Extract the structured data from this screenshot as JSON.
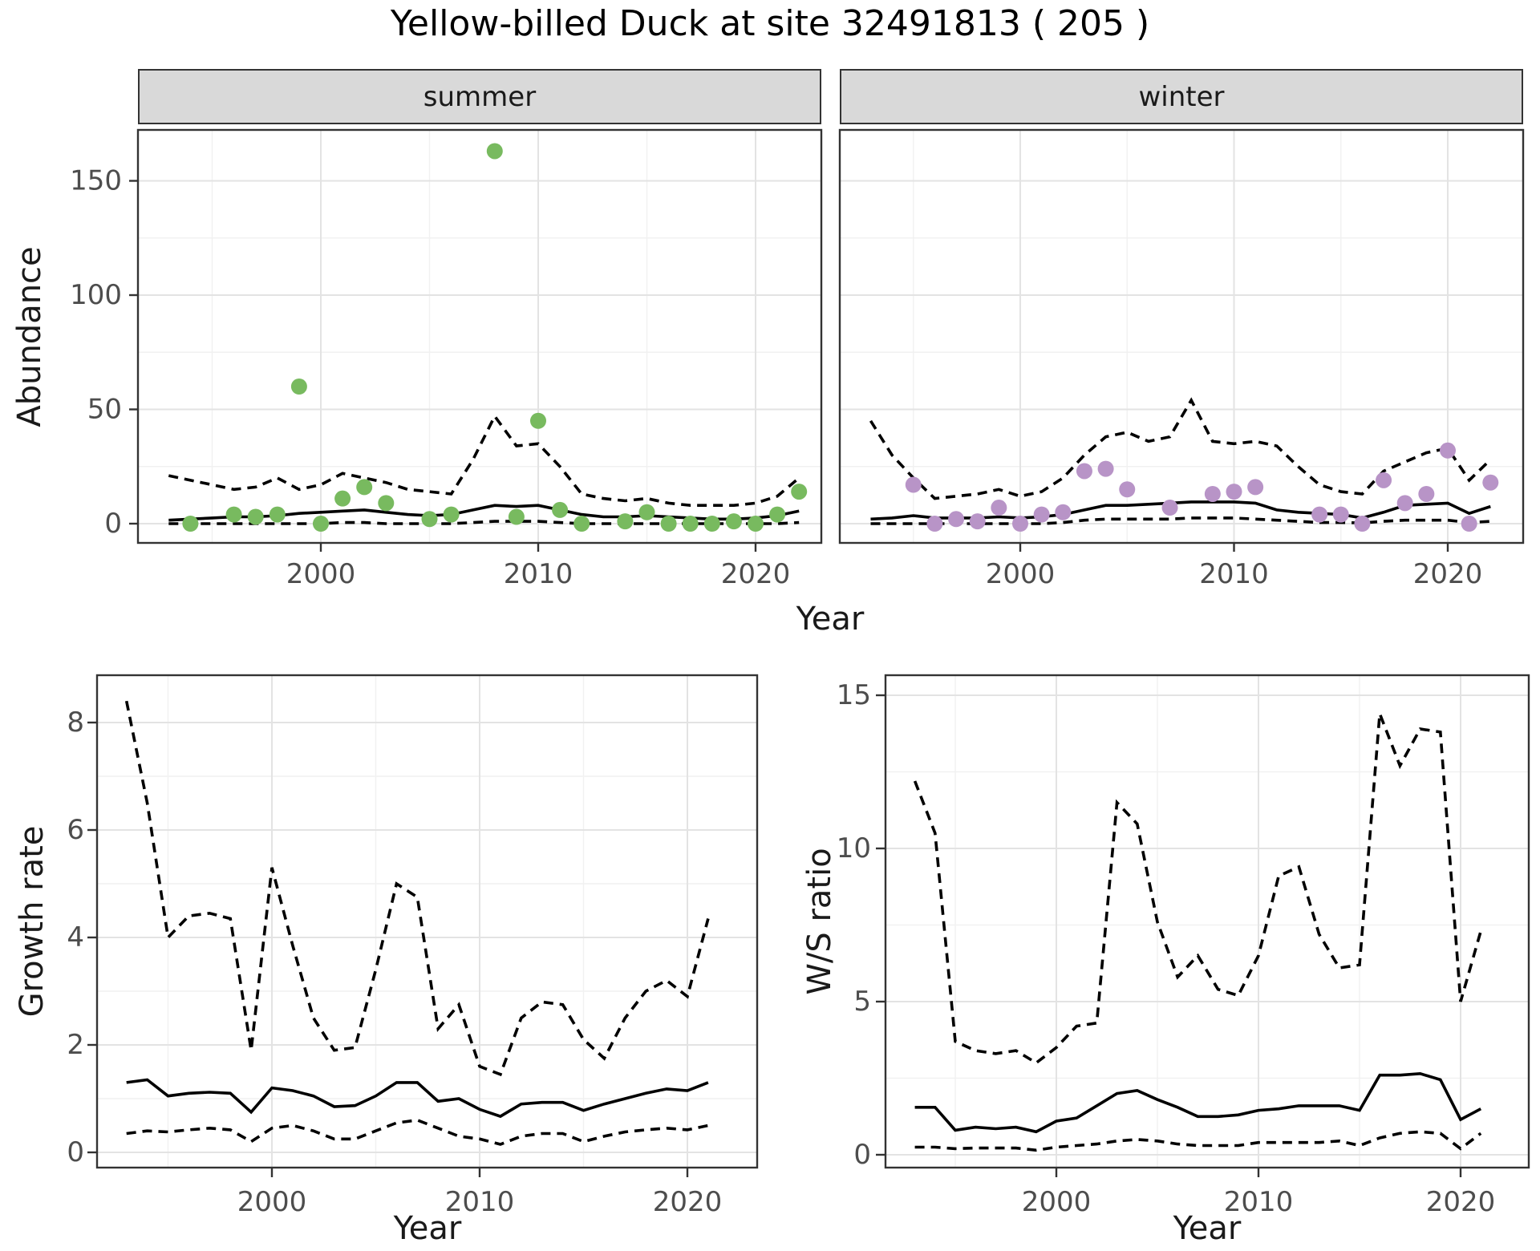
{
  "title": "Yellow-billed Duck at site 32491813 ( 205 )",
  "facets": [
    {
      "label": "summer"
    },
    {
      "label": "winter"
    }
  ],
  "axes": {
    "abundance": "Abundance",
    "year": "Year",
    "growth": "Growth rate",
    "ws": "W/S ratio"
  },
  "colors": {
    "summer_point": "#78ba5f",
    "winter_point": "#b894c7",
    "line": "#000000",
    "strip_bg": "#d9d9d9",
    "grid_major": "#e3e3e3",
    "grid_minor": "#f1f1f1",
    "panel_border": "#333333",
    "tick_text": "#4d4d4d",
    "background": "#ffffff"
  },
  "chart_data": [
    {
      "id": "abundance_summer",
      "type": "scatter",
      "facet_label": "summer",
      "xlabel": "Year",
      "ylabel": "Abundance",
      "xlim": [
        1991.6,
        2023
      ],
      "ylim": [
        -8,
        172
      ],
      "x_ticks": [
        2000,
        2010,
        2020
      ],
      "x_minor": [
        1995,
        2005,
        2015
      ],
      "y_ticks": [
        0,
        50,
        100,
        150
      ],
      "y_minor": [
        25,
        75,
        125
      ],
      "grid": true,
      "legend": "none",
      "points": {
        "x": [
          1994,
          1996,
          1997,
          1998,
          1999,
          2000,
          2001,
          2002,
          2003,
          2005,
          2006,
          2008,
          2009,
          2010,
          2011,
          2012,
          2014,
          2015,
          2016,
          2017,
          2018,
          2019,
          2020,
          2021,
          2022
        ],
        "y": [
          0,
          4,
          3,
          4,
          60,
          0,
          11,
          16,
          9,
          2,
          4,
          163,
          3,
          45,
          6,
          0,
          1,
          5,
          0,
          0,
          0,
          1,
          0,
          4,
          14
        ]
      },
      "fit_years": [
        1993,
        1994,
        1995,
        1996,
        1997,
        1998,
        1999,
        2000,
        2001,
        2002,
        2003,
        2004,
        2005,
        2006,
        2007,
        2008,
        2009,
        2010,
        2011,
        2012,
        2013,
        2014,
        2015,
        2016,
        2017,
        2018,
        2019,
        2020,
        2021,
        2022
      ],
      "fit": [
        1.5,
        2,
        2.5,
        3,
        3,
        3.5,
        4.5,
        5,
        5.5,
        6,
        5,
        4,
        3.5,
        4,
        6,
        8,
        7.5,
        8,
        6,
        4,
        3,
        3,
        3.5,
        3,
        2.5,
        2,
        2,
        2.5,
        3.5,
        5.5
      ],
      "upper": [
        21,
        19,
        17,
        15,
        16,
        20,
        15,
        17,
        22,
        20,
        18,
        15,
        14,
        13,
        28,
        47,
        34,
        35,
        25,
        13,
        11,
        10,
        11,
        9,
        8,
        8,
        8,
        9,
        12,
        20
      ],
      "lower": [
        0,
        0,
        0,
        0,
        0,
        0,
        0,
        0,
        0.5,
        0.5,
        0,
        0,
        0,
        0,
        0.5,
        1,
        1,
        1,
        0.5,
        0,
        0,
        0,
        0,
        0,
        0,
        0,
        0,
        0,
        0,
        0.5
      ]
    },
    {
      "id": "abundance_winter",
      "type": "scatter",
      "facet_label": "winter",
      "xlabel": "Year",
      "ylabel": "Abundance",
      "xlim": [
        1991.6,
        2023
      ],
      "ylim": [
        -8,
        172
      ],
      "x_ticks": [
        2000,
        2010,
        2020
      ],
      "x_minor": [
        1995,
        2005,
        2015
      ],
      "y_ticks": [
        0,
        50,
        100,
        150
      ],
      "y_minor": [
        25,
        75,
        125
      ],
      "grid": true,
      "legend": "none",
      "points": {
        "x": [
          1995,
          1996,
          1997,
          1998,
          1999,
          2000,
          2001,
          2002,
          2003,
          2004,
          2005,
          2007,
          2009,
          2010,
          2011,
          2014,
          2015,
          2016,
          2017,
          2018,
          2019,
          2020,
          2021,
          2022
        ],
        "y": [
          17,
          0,
          2,
          1,
          7,
          0,
          4,
          5,
          23,
          24,
          15,
          7,
          13,
          14,
          16,
          4,
          4,
          0,
          19,
          9,
          13,
          32,
          0,
          18
        ]
      },
      "fit_years": [
        1993,
        1994,
        1995,
        1996,
        1997,
        1998,
        1999,
        2000,
        2001,
        2002,
        2003,
        2004,
        2005,
        2006,
        2007,
        2008,
        2009,
        2010,
        2011,
        2012,
        2013,
        2014,
        2015,
        2016,
        2017,
        2018,
        2019,
        2020,
        2021,
        2022
      ],
      "fit": [
        2,
        2.5,
        3.5,
        2.5,
        2.5,
        2.5,
        3,
        2.5,
        3,
        4,
        6,
        8,
        8,
        8.5,
        9,
        9.5,
        9.5,
        9.5,
        9,
        6,
        5,
        4.5,
        4,
        2.5,
        5,
        8,
        8.5,
        9,
        4.5,
        7.5
      ],
      "upper": [
        45,
        30,
        20,
        11,
        12,
        13,
        15,
        12,
        14,
        20,
        30,
        38,
        40,
        36,
        38,
        54,
        36,
        35,
        36,
        34,
        25,
        17,
        14,
        13,
        23,
        27,
        31,
        33,
        19,
        28
      ],
      "lower": [
        0,
        0,
        0,
        0,
        0,
        0,
        0,
        0,
        0,
        0.5,
        1.5,
        2,
        2,
        2,
        2,
        2.5,
        2.5,
        2.5,
        2,
        1.5,
        1,
        0.5,
        0.5,
        0.3,
        1,
        1.5,
        1.5,
        1.5,
        0.5,
        1
      ]
    },
    {
      "id": "growth_rate",
      "type": "line",
      "xlabel": "Year",
      "ylabel": "Growth rate",
      "xlim": [
        1992.3,
        2023.5
      ],
      "ylim": [
        -0.3,
        8.9
      ],
      "x_ticks": [
        2000,
        2010,
        2020
      ],
      "x_minor": [
        1995,
        2005,
        2015
      ],
      "y_ticks": [
        0,
        2,
        4,
        6,
        8
      ],
      "y_minor": [
        1,
        3,
        5,
        7
      ],
      "grid": true,
      "legend": "none",
      "fit_years": [
        1993,
        1994,
        1995,
        1996,
        1997,
        1998,
        1999,
        2000,
        2001,
        2002,
        2003,
        2004,
        2005,
        2006,
        2007,
        2008,
        2009,
        2010,
        2011,
        2012,
        2013,
        2014,
        2015,
        2016,
        2017,
        2018,
        2019,
        2020,
        2021
      ],
      "fit": [
        1.3,
        1.35,
        1.05,
        1.1,
        1.12,
        1.1,
        0.75,
        1.2,
        1.15,
        1.05,
        0.85,
        0.87,
        1.05,
        1.3,
        1.3,
        0.95,
        1.0,
        0.8,
        0.67,
        0.9,
        0.93,
        0.93,
        0.78,
        0.9,
        1.0,
        1.1,
        1.18,
        1.15,
        1.3
      ],
      "upper": [
        8.4,
        6.5,
        4.0,
        4.4,
        4.45,
        4.35,
        1.9,
        5.3,
        3.85,
        2.5,
        1.9,
        1.95,
        3.4,
        5.0,
        4.75,
        2.3,
        2.75,
        1.6,
        1.45,
        2.5,
        2.8,
        2.75,
        2.1,
        1.75,
        2.5,
        3.0,
        3.2,
        2.9,
        4.35
      ],
      "lower": [
        0.35,
        0.4,
        0.38,
        0.42,
        0.45,
        0.42,
        0.2,
        0.45,
        0.5,
        0.4,
        0.25,
        0.25,
        0.4,
        0.55,
        0.6,
        0.45,
        0.3,
        0.25,
        0.15,
        0.3,
        0.35,
        0.35,
        0.2,
        0.3,
        0.38,
        0.42,
        0.45,
        0.42,
        0.5
      ]
    },
    {
      "id": "ws_ratio",
      "type": "line",
      "xlabel": "Year",
      "ylabel": "W/S ratio",
      "xlim": [
        1991.5,
        2023.4
      ],
      "ylim": [
        -0.5,
        15.6
      ],
      "x_ticks": [
        2000,
        2010,
        2020
      ],
      "x_minor": [
        1995,
        2005,
        2015
      ],
      "y_ticks": [
        0,
        5,
        10,
        15
      ],
      "y_minor": [
        2.5,
        7.5,
        12.5
      ],
      "grid": true,
      "legend": "none",
      "fit_years": [
        1993,
        1994,
        1995,
        1996,
        1997,
        1998,
        1999,
        2000,
        2001,
        2002,
        2003,
        2004,
        2005,
        2006,
        2007,
        2008,
        2009,
        2010,
        2011,
        2012,
        2013,
        2014,
        2015,
        2016,
        2017,
        2018,
        2019,
        2020,
        2021
      ],
      "fit": [
        1.55,
        1.55,
        0.8,
        0.9,
        0.85,
        0.9,
        0.75,
        1.1,
        1.2,
        1.6,
        2.0,
        2.1,
        1.8,
        1.55,
        1.25,
        1.25,
        1.3,
        1.45,
        1.5,
        1.6,
        1.6,
        1.6,
        1.45,
        2.6,
        2.6,
        2.65,
        2.45,
        1.15,
        1.5
      ],
      "upper": [
        12.2,
        10.5,
        3.7,
        3.4,
        3.3,
        3.4,
        3.0,
        3.5,
        4.2,
        4.3,
        11.5,
        10.8,
        7.6,
        5.8,
        6.5,
        5.4,
        5.2,
        6.5,
        9.1,
        9.4,
        7.2,
        6.1,
        6.2,
        14.4,
        12.7,
        13.9,
        13.8,
        5.0,
        7.3
      ],
      "lower": [
        0.25,
        0.25,
        0.2,
        0.22,
        0.22,
        0.22,
        0.15,
        0.25,
        0.3,
        0.35,
        0.45,
        0.5,
        0.45,
        0.35,
        0.3,
        0.3,
        0.3,
        0.4,
        0.4,
        0.4,
        0.4,
        0.45,
        0.3,
        0.55,
        0.7,
        0.75,
        0.7,
        0.2,
        0.7
      ]
    }
  ]
}
